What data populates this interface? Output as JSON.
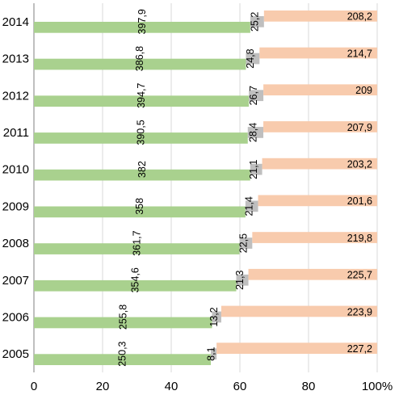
{
  "chart_data": {
    "type": "bar",
    "orientation": "horizontal",
    "stacking": "percent",
    "categories": [
      "2014",
      "2013",
      "2012",
      "2011",
      "2010",
      "2009",
      "2008",
      "2007",
      "2006",
      "2005"
    ],
    "series": [
      {
        "color": "#a9d18e",
        "values": [
          397.9,
          386.8,
          394.7,
          390.5,
          382,
          358,
          361.7,
          354.6,
          255.8,
          250.3
        ],
        "labels": [
          "397,9",
          "386,8",
          "394,7",
          "390,5",
          "382",
          "358",
          "361,7",
          "354,6",
          "255,8",
          "250,3"
        ],
        "label_orientation": "vertical"
      },
      {
        "color": "#bfbfbf",
        "values": [
          25.2,
          24.8,
          26.7,
          28.4,
          21.1,
          21.4,
          22.5,
          21.3,
          13.2,
          8.1
        ],
        "labels": [
          "25,2",
          "24,8",
          "26,7",
          "28,4",
          "21,1",
          "21,4",
          "22,5",
          "21,3",
          "13,2",
          "8,1"
        ],
        "label_orientation": "vertical"
      },
      {
        "color": "#f8cbad",
        "values": [
          208.2,
          214.7,
          209,
          207.9,
          203.2,
          201.6,
          219.8,
          225.7,
          223.9,
          227.2
        ],
        "labels": [
          "208,2",
          "214,7",
          "209",
          "207,9",
          "203,2",
          "201,6",
          "219,8",
          "225,7",
          "223,9",
          "227,2"
        ],
        "label_orientation": "horizontal"
      }
    ],
    "x_ticks": [
      "0",
      "20",
      "40",
      "60",
      "80",
      "100%"
    ],
    "xlim": [
      0,
      100
    ],
    "grid": "vertical",
    "legend": "none"
  }
}
